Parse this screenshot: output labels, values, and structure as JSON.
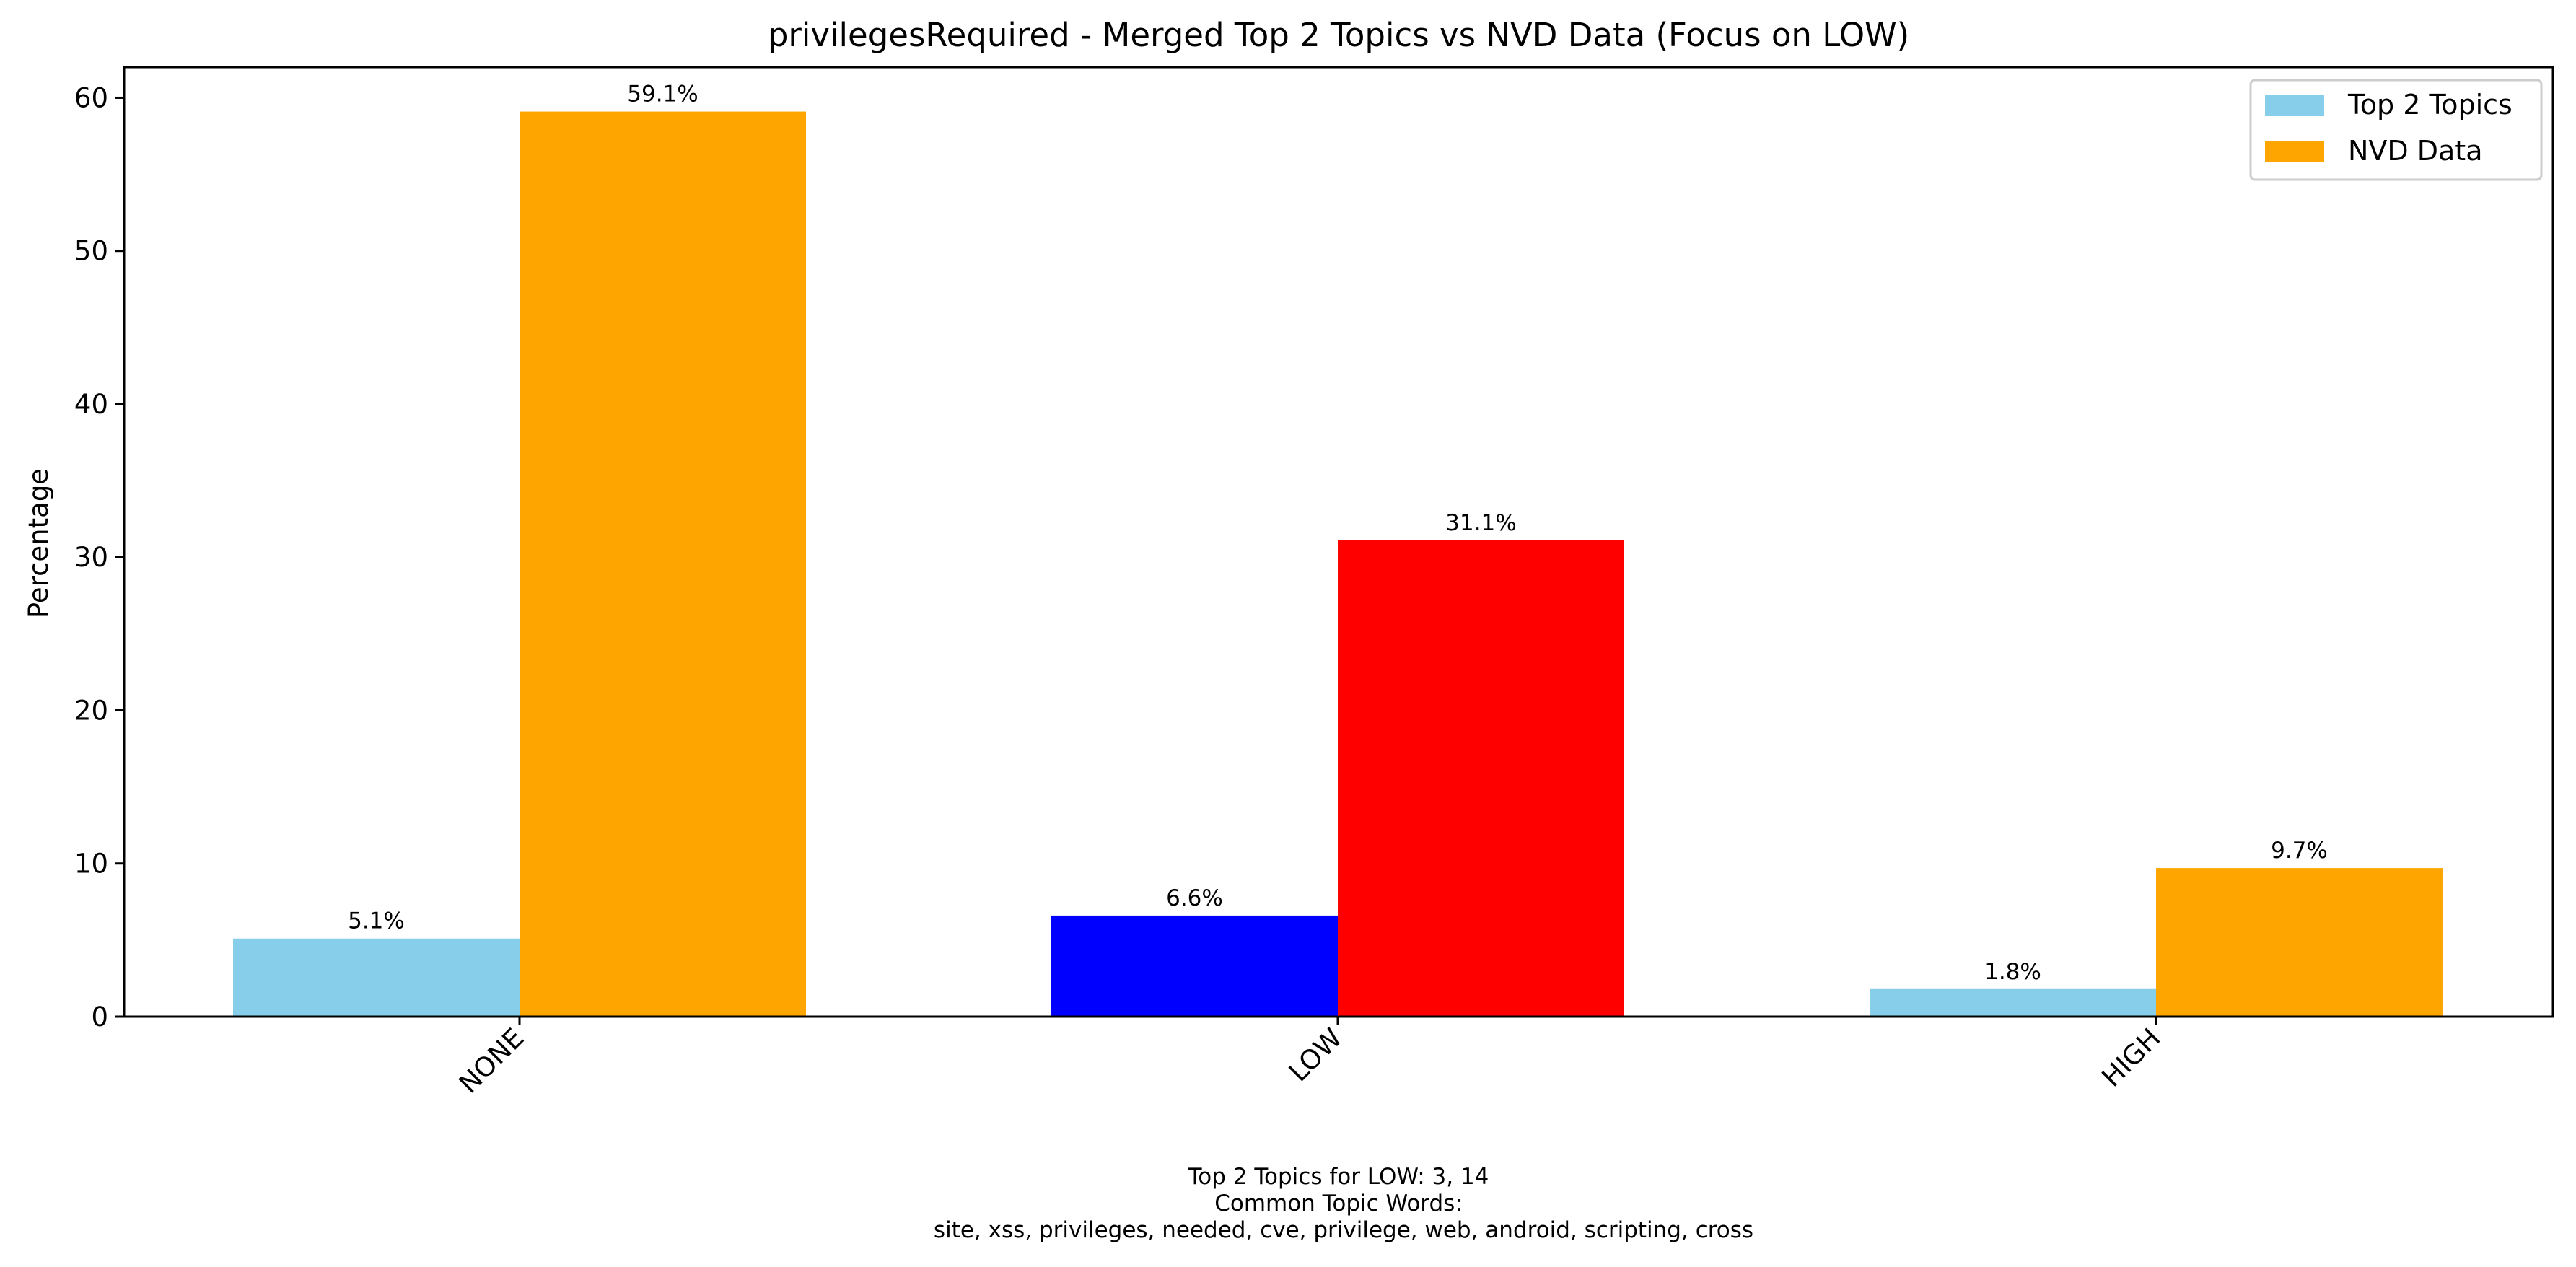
{
  "chart_data": {
    "type": "bar",
    "title": "privilegesRequired - Merged Top 2 Topics vs NVD Data (Focus on LOW)",
    "xlabel": "",
    "ylabel": "Percentage",
    "categories": [
      "NONE",
      "LOW",
      "HIGH"
    ],
    "series": [
      {
        "name": "Top 2 Topics",
        "color": "#87ceeb",
        "highlight_color": "#0000ff",
        "values": [
          5.1,
          6.6,
          1.8
        ],
        "labels": [
          "5.1%",
          "6.6%",
          "1.8%"
        ]
      },
      {
        "name": "NVD Data",
        "color": "#ffa500",
        "highlight_color": "#ff0000",
        "values": [
          59.1,
          31.1,
          9.7
        ],
        "labels": [
          "59.1%",
          "31.1%",
          "9.7%"
        ]
      }
    ],
    "highlight_category": "LOW",
    "ylim": [
      0,
      62
    ],
    "yticks": [
      0,
      10,
      20,
      30,
      40,
      50,
      60
    ],
    "grid": false,
    "legend": "top-right",
    "footnote": [
      "Top 2 Topics for LOW: 3, 14",
      "Common Topic Words:",
      "site,  xss,  privileges,  needed,  cve,  privilege,  web,  android,  scripting,  cross"
    ]
  }
}
